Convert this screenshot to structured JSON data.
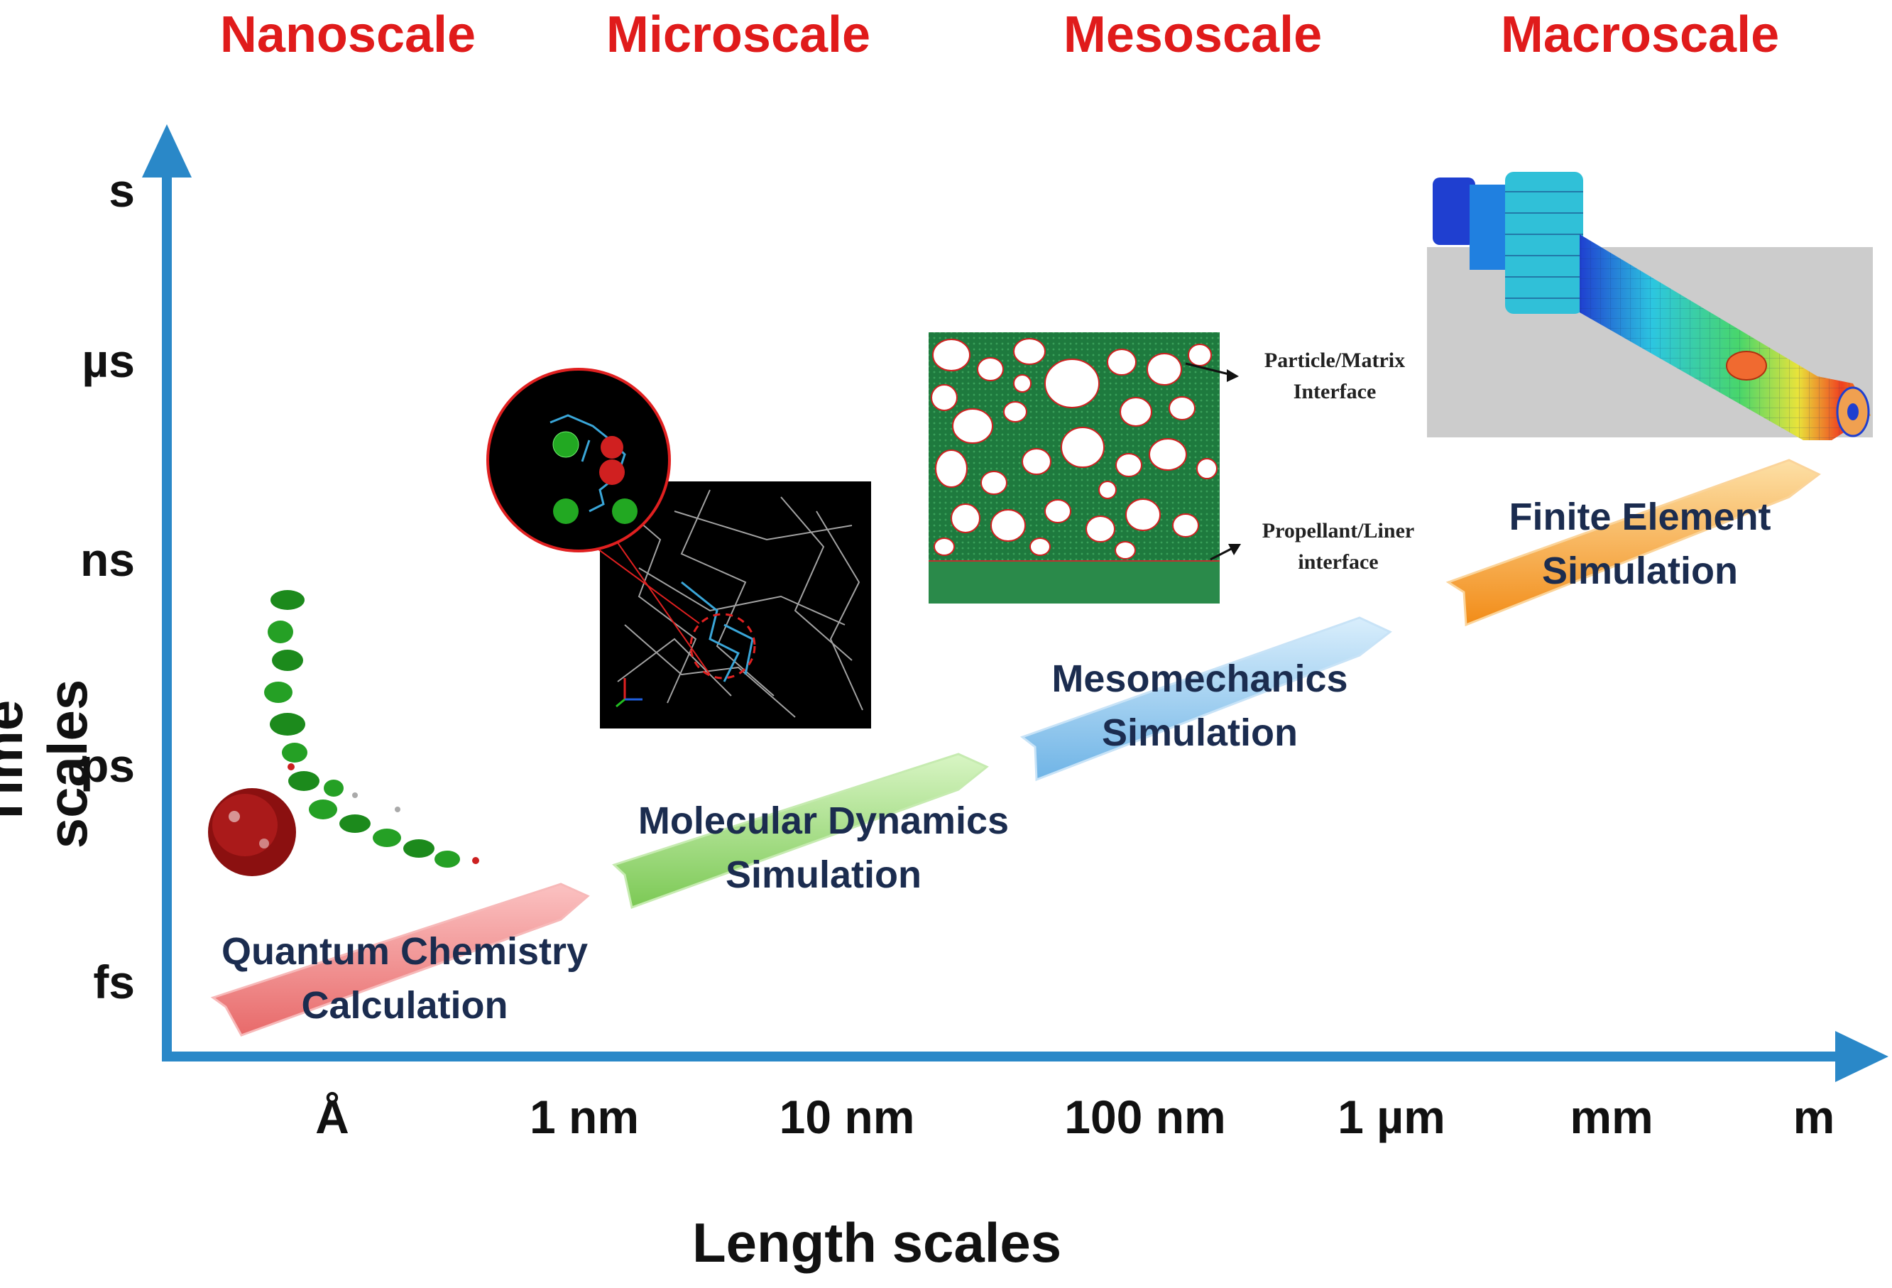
{
  "scales": {
    "nano": "Nanoscale",
    "micro": "Microscale",
    "meso": "Mesoscale",
    "macro": "Macroscale"
  },
  "axes": {
    "y_title": "Time scales",
    "x_title": "Length scales",
    "y_ticks": [
      "s",
      "µs",
      "ns",
      "ps",
      "fs"
    ],
    "x_ticks": [
      "Å",
      "1 nm",
      "10 nm",
      "100 nm",
      "1 µm",
      "mm",
      "m"
    ]
  },
  "methods": {
    "quantum": [
      "Quantum Chemistry",
      "Calculation"
    ],
    "md": [
      "Molecular Dynamics",
      "Simulation"
    ],
    "meso": [
      "Mesomechanics",
      "Simulation"
    ],
    "fe": [
      "Finite Element",
      "Simulation"
    ]
  },
  "annotations": {
    "particle_matrix": [
      "Particle/Matrix",
      "Interface"
    ],
    "propellant_liner": [
      "Propellant/Liner",
      "interface"
    ]
  },
  "colors": {
    "axis": "#2a88c8",
    "heading": "#e01b1b",
    "text": "#1b2c4f",
    "quantum_arrow": "#f08c8c",
    "md_arrow": "#9bd67a",
    "meso_arrow": "#8cc4ee",
    "fe_arrow": "#f5a030"
  }
}
